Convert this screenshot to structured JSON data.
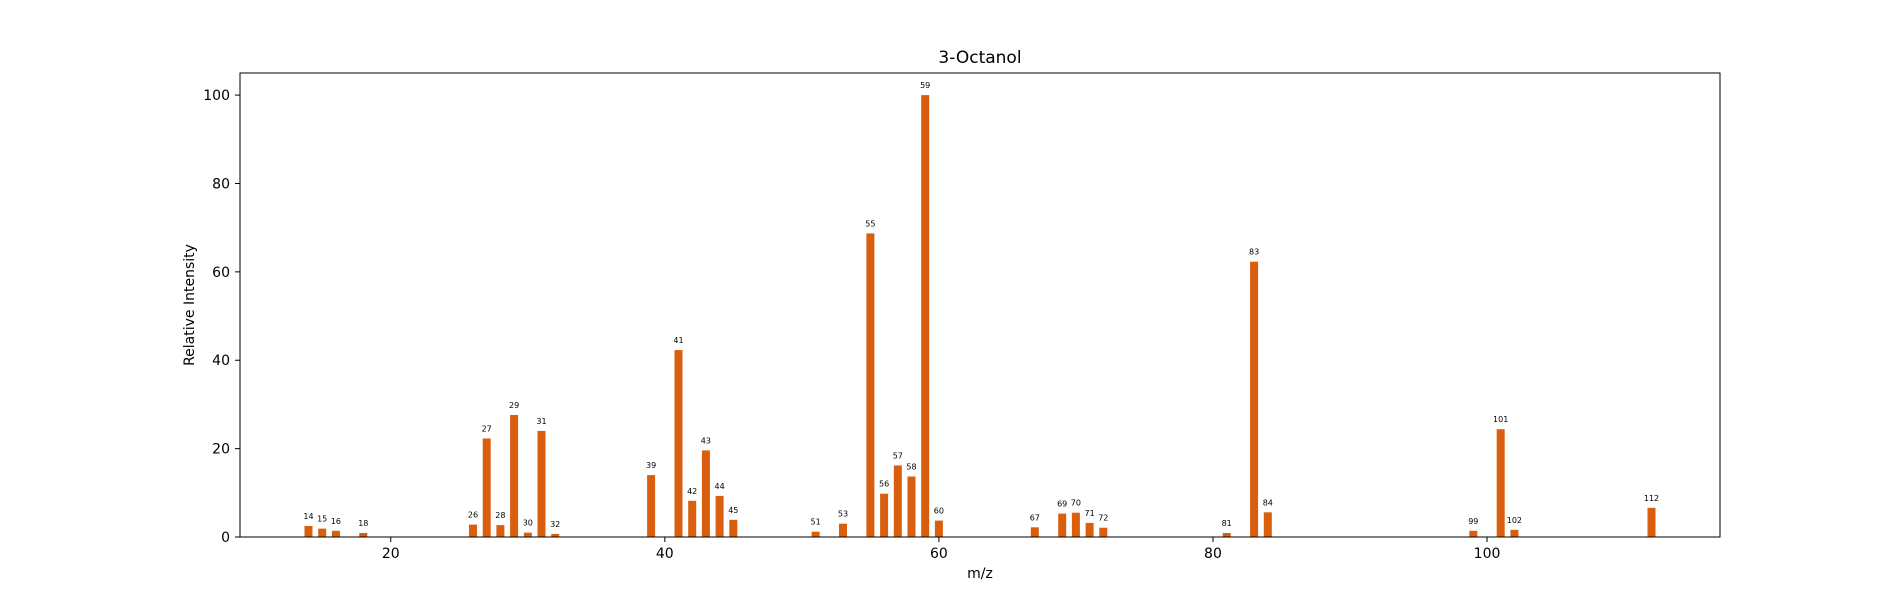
{
  "colors": {
    "bar": "#d95f0e",
    "axis": "#000000",
    "background": "#ffffff"
  },
  "chart_data": {
    "type": "bar",
    "title": "3-Octanol",
    "xlabel": "m/z",
    "ylabel": "Relative Intensity",
    "xlim": [
      9,
      117
    ],
    "ylim": [
      0,
      105
    ],
    "xticks": [
      20,
      40,
      60,
      80,
      100
    ],
    "yticks": [
      0,
      20,
      40,
      60,
      80,
      100
    ],
    "grid": false,
    "legend": "none",
    "x": [
      14,
      15,
      16,
      18,
      26,
      27,
      28,
      29,
      30,
      31,
      32,
      39,
      41,
      42,
      43,
      44,
      45,
      51,
      53,
      55,
      56,
      57,
      58,
      59,
      60,
      67,
      69,
      70,
      71,
      72,
      81,
      83,
      84,
      99,
      101,
      102,
      112
    ],
    "values": [
      2.5,
      1.9,
      1.4,
      0.9,
      2.8,
      22.3,
      2.7,
      27.6,
      1.0,
      24.0,
      0.7,
      14.0,
      42.3,
      8.2,
      19.6,
      9.3,
      3.9,
      1.2,
      3.0,
      68.7,
      9.8,
      16.2,
      13.7,
      100.0,
      3.7,
      2.2,
      5.3,
      5.5,
      3.2,
      2.1,
      0.9,
      62.3,
      5.6,
      1.4,
      24.4,
      1.6,
      6.6
    ],
    "data_labels": [
      "14",
      "15",
      "16",
      "18",
      "26",
      "27",
      "28",
      "29",
      "30",
      "31",
      "32",
      "39",
      "41",
      "42",
      "43",
      "44",
      "45",
      "51",
      "53",
      "55",
      "56",
      "57",
      "58",
      "59",
      "60",
      "67",
      "69",
      "70",
      "71",
      "72",
      "81",
      "83",
      "84",
      "99",
      "101",
      "102",
      "112"
    ]
  }
}
